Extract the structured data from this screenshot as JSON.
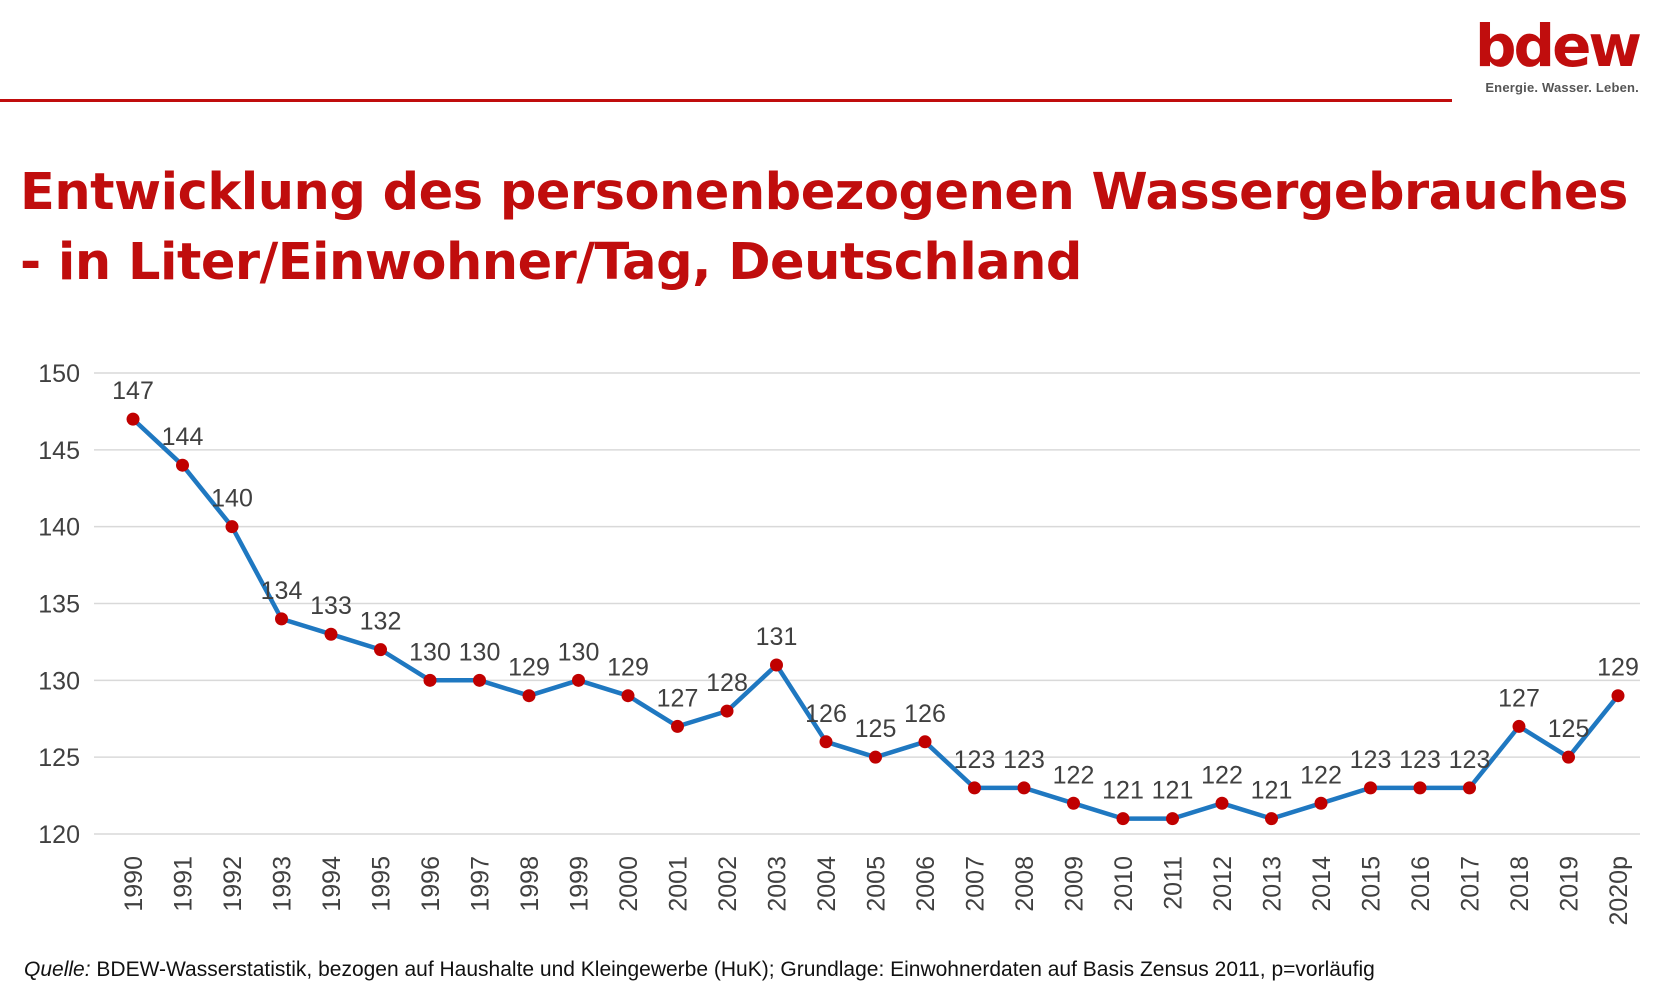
{
  "logo": {
    "word": "bdew",
    "tagline": "Energie. Wasser. Leben."
  },
  "title_line1": "Entwicklung des personenbezogenen Wassergebrauches",
  "title_line2": "- in Liter/Einwohner/Tag, Deutschland",
  "source": {
    "label": "Quelle:",
    "text": "BDEW-Wasserstatistik, bezogen auf Haushalte und Kleingewerbe (HuK); Grundlage: Einwohnerdaten auf Basis Zensus 2011, p=vorläufig"
  },
  "colors": {
    "brand": "#c00d0d",
    "line": "#1f78c1",
    "marker": "#c00000",
    "grid": "#d9d9d9",
    "text": "#404040"
  },
  "chart_data": {
    "type": "line",
    "categories": [
      "1990",
      "1991",
      "1992",
      "1993",
      "1994",
      "1995",
      "1996",
      "1997",
      "1998",
      "1999",
      "2000",
      "2001",
      "2002",
      "2003",
      "2004",
      "2005",
      "2006",
      "2007",
      "2008",
      "2009",
      "2010",
      "2011",
      "2012",
      "2013",
      "2014",
      "2015",
      "2016",
      "2017",
      "2018",
      "2019",
      "2020p"
    ],
    "values": [
      147,
      144,
      140,
      134,
      133,
      132,
      130,
      130,
      129,
      130,
      129,
      127,
      128,
      131,
      126,
      125,
      126,
      123,
      123,
      122,
      121,
      121,
      122,
      121,
      122,
      123,
      123,
      123,
      127,
      125,
      129
    ],
    "ylim": [
      120,
      150
    ],
    "yticks": [
      120,
      125,
      130,
      135,
      140,
      145,
      150
    ],
    "grid": true,
    "data_labels": true
  }
}
